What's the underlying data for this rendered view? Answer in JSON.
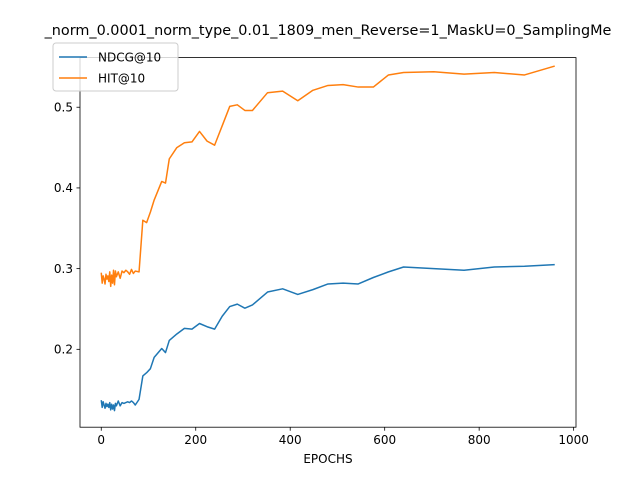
{
  "chart_data": {
    "type": "line",
    "title": "_norm_0.0001_norm_type_0.01_1809_men_Reverse=1_MaskU=0_SamplingMe",
    "xlabel": "EPOCHS",
    "ylabel": "",
    "xlim": [
      -45,
      1005
    ],
    "ylim": [
      0.1035,
      0.5615
    ],
    "xticks": [
      0,
      200,
      400,
      600,
      800,
      1000
    ],
    "yticks": [
      0.2,
      0.3,
      0.4,
      0.5
    ],
    "xtick_labels": [
      "0",
      "200",
      "400",
      "600",
      "800",
      "1000"
    ],
    "ytick_labels": [
      "0.2",
      "0.3",
      "0.4",
      "0.5"
    ],
    "grid": false,
    "legend_position": "top-left",
    "series": [
      {
        "name": "NDCG@10",
        "color": "#1f77b4",
        "x": [
          0,
          2,
          4,
          6,
          8,
          10,
          12,
          14,
          16,
          18,
          20,
          22,
          24,
          26,
          28,
          30,
          32,
          36,
          40,
          44,
          48,
          52,
          56,
          60,
          64,
          68,
          72,
          80,
          88,
          96,
          104,
          112,
          128,
          136,
          144,
          160,
          176,
          192,
          208,
          224,
          240,
          256,
          272,
          288,
          304,
          320,
          352,
          384,
          416,
          448,
          480,
          512,
          544,
          576,
          608,
          640,
          704,
          768,
          832,
          896,
          960
        ],
        "y": [
          0.137,
          0.128,
          0.135,
          0.131,
          0.127,
          0.133,
          0.129,
          0.132,
          0.128,
          0.134,
          0.125,
          0.132,
          0.126,
          0.131,
          0.124,
          0.133,
          0.13,
          0.136,
          0.13,
          0.134,
          0.133,
          0.134,
          0.135,
          0.134,
          0.136,
          0.134,
          0.131,
          0.138,
          0.167,
          0.171,
          0.176,
          0.19,
          0.201,
          0.196,
          0.211,
          0.219,
          0.226,
          0.225,
          0.232,
          0.228,
          0.225,
          0.241,
          0.253,
          0.256,
          0.251,
          0.255,
          0.271,
          0.275,
          0.268,
          0.274,
          0.281,
          0.282,
          0.281,
          0.289,
          0.296,
          0.302,
          0.3,
          0.298,
          0.302,
          0.303,
          0.305
        ]
      },
      {
        "name": "HIT@10",
        "color": "#ff7f0e",
        "x": [
          0,
          2,
          4,
          6,
          8,
          10,
          12,
          14,
          16,
          18,
          20,
          22,
          24,
          26,
          28,
          30,
          32,
          36,
          40,
          44,
          48,
          52,
          56,
          60,
          64,
          68,
          72,
          80,
          88,
          96,
          104,
          112,
          128,
          136,
          144,
          160,
          176,
          192,
          208,
          224,
          240,
          256,
          272,
          288,
          304,
          320,
          352,
          384,
          416,
          448,
          480,
          512,
          544,
          576,
          608,
          640,
          704,
          768,
          832,
          896,
          960
        ],
        "y": [
          0.295,
          0.282,
          0.291,
          0.287,
          0.281,
          0.293,
          0.287,
          0.291,
          0.284,
          0.296,
          0.278,
          0.292,
          0.282,
          0.298,
          0.28,
          0.297,
          0.29,
          0.296,
          0.288,
          0.297,
          0.295,
          0.298,
          0.296,
          0.293,
          0.299,
          0.294,
          0.297,
          0.296,
          0.36,
          0.357,
          0.37,
          0.385,
          0.408,
          0.406,
          0.436,
          0.45,
          0.456,
          0.457,
          0.47,
          0.458,
          0.453,
          0.477,
          0.501,
          0.503,
          0.496,
          0.496,
          0.518,
          0.52,
          0.508,
          0.521,
          0.527,
          0.528,
          0.525,
          0.525,
          0.54,
          0.543,
          0.544,
          0.541,
          0.543,
          0.54,
          0.551
        ]
      }
    ]
  }
}
